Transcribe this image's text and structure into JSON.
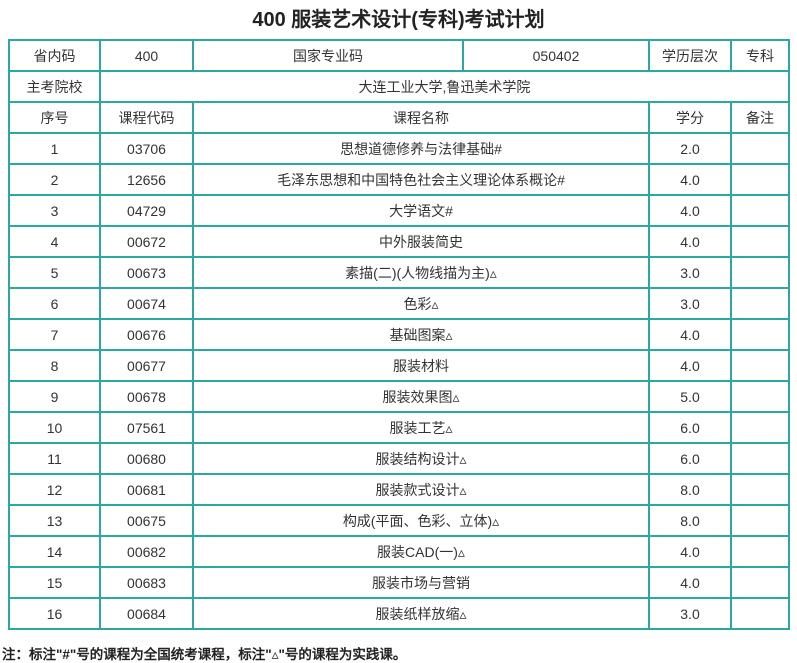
{
  "title": "400 服装艺术设计(专科)考试计划",
  "info": {
    "province_code_label": "省内码",
    "province_code_value": "400",
    "national_code_label": "国家专业码",
    "national_code_value": "050402",
    "level_label": "学历层次",
    "level_value": "专科",
    "host_school_label": "主考院校",
    "host_school_value": "大连工业大学,鲁迅美术学院"
  },
  "table": {
    "headers": [
      "序号",
      "课程代码",
      "课程名称",
      "学分",
      "备注"
    ],
    "rows": [
      {
        "no": "1",
        "code": "03706",
        "name": "思想道德修养与法律基础#",
        "credit": "2.0",
        "remark": ""
      },
      {
        "no": "2",
        "code": "12656",
        "name": "毛泽东思想和中国特色社会主义理论体系概论#",
        "credit": "4.0",
        "remark": ""
      },
      {
        "no": "3",
        "code": "04729",
        "name": "大学语文#",
        "credit": "4.0",
        "remark": ""
      },
      {
        "no": "4",
        "code": "00672",
        "name": "中外服装简史",
        "credit": "4.0",
        "remark": ""
      },
      {
        "no": "5",
        "code": "00673",
        "name": "素描(二)(人物线描为主)▵",
        "credit": "3.0",
        "remark": ""
      },
      {
        "no": "6",
        "code": "00674",
        "name": "色彩▵",
        "credit": "3.0",
        "remark": ""
      },
      {
        "no": "7",
        "code": "00676",
        "name": "基础图案▵",
        "credit": "4.0",
        "remark": ""
      },
      {
        "no": "8",
        "code": "00677",
        "name": "服装材料",
        "credit": "4.0",
        "remark": ""
      },
      {
        "no": "9",
        "code": "00678",
        "name": "服装效果图▵",
        "credit": "5.0",
        "remark": ""
      },
      {
        "no": "10",
        "code": "07561",
        "name": "服装工艺▵",
        "credit": "6.0",
        "remark": ""
      },
      {
        "no": "11",
        "code": "00680",
        "name": "服装结构设计▵",
        "credit": "6.0",
        "remark": ""
      },
      {
        "no": "12",
        "code": "00681",
        "name": "服装款式设计▵",
        "credit": "8.0",
        "remark": ""
      },
      {
        "no": "13",
        "code": "00675",
        "name": "构成(平面、色彩、立体)▵",
        "credit": "8.0",
        "remark": ""
      },
      {
        "no": "14",
        "code": "00682",
        "name": "服装CAD(一)▵",
        "credit": "4.0",
        "remark": ""
      },
      {
        "no": "15",
        "code": "00683",
        "name": "服装市场与营销",
        "credit": "4.0",
        "remark": ""
      },
      {
        "no": "16",
        "code": "00684",
        "name": "服装纸样放缩▵",
        "credit": "3.0",
        "remark": ""
      }
    ]
  },
  "note": "注：标注\"#\"号的课程为全国统考课程，标注\"▵\"号的课程为实践课。",
  "colors": {
    "border": "#2CA8A3",
    "text": "#333333",
    "title": "#222222"
  }
}
